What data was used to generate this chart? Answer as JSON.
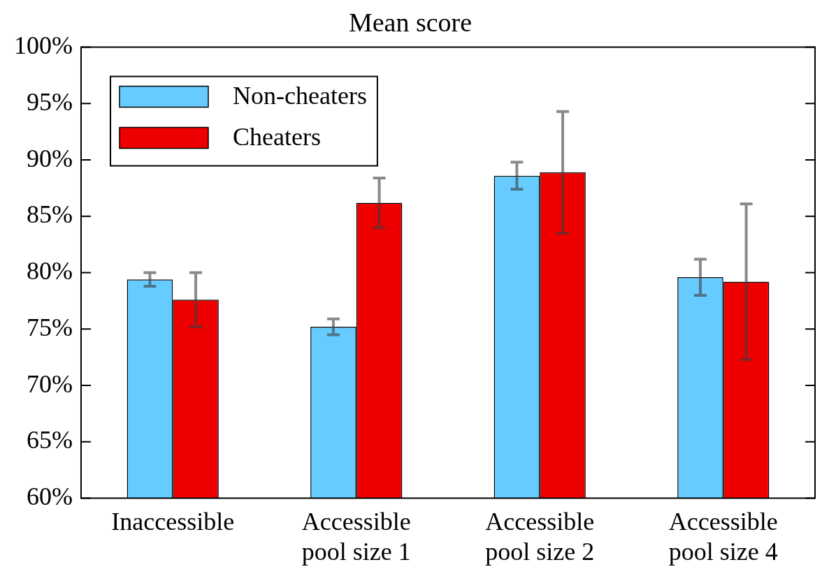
{
  "chart_data": {
    "type": "bar",
    "title": "Mean score",
    "categories": [
      "Inaccessible",
      "Accessible\npool size 1",
      "Accessible\npool size 2",
      "Accessible\npool size 4"
    ],
    "series": [
      {
        "name": "Non-cheaters",
        "color": "#66ccff",
        "values": [
          79.4,
          75.2,
          88.6,
          79.6
        ],
        "errors": [
          0.6,
          0.7,
          1.2,
          1.6
        ]
      },
      {
        "name": "Cheaters",
        "color": "#ee0000",
        "values": [
          77.6,
          86.2,
          88.9,
          79.2
        ],
        "errors": [
          2.4,
          2.2,
          5.4,
          6.9
        ]
      }
    ],
    "ylim": [
      60,
      100
    ],
    "yticks": [
      {
        "value": 60,
        "label": "60%"
      },
      {
        "value": 65,
        "label": "65%"
      },
      {
        "value": 70,
        "label": "70%"
      },
      {
        "value": 75,
        "label": "75%"
      },
      {
        "value": 80,
        "label": "80%"
      },
      {
        "value": 85,
        "label": "85%"
      },
      {
        "value": 90,
        "label": "90%"
      },
      {
        "value": 95,
        "label": "95%"
      },
      {
        "value": 100,
        "label": "100%"
      }
    ],
    "grid": false,
    "legend": "top left"
  }
}
